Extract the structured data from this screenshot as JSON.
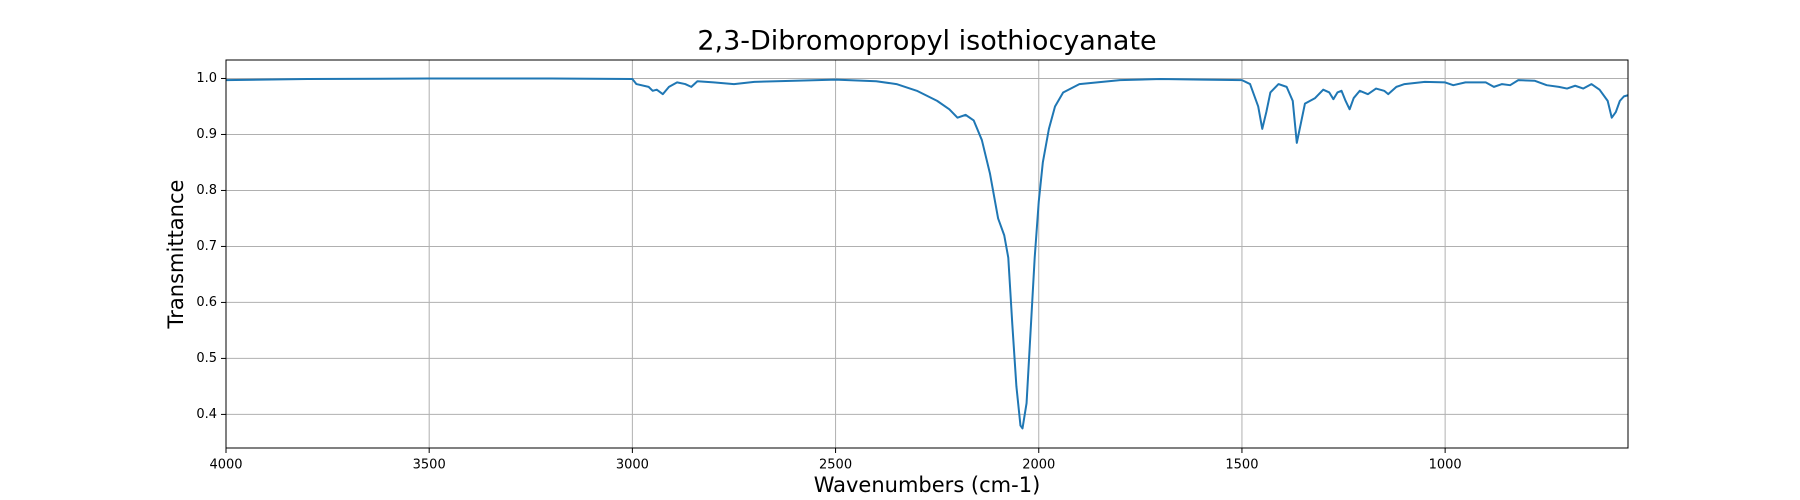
{
  "chart_data": {
    "type": "line",
    "title": "2,3-Dibromopropyl isothiocyanate",
    "x_label": "Wavenumbers (cm-1)",
    "y_label": "Transmittance",
    "color": "#1f77b4",
    "grid": true,
    "xlim": [
      4000,
      550
    ],
    "ylim": [
      0.34,
      1.033
    ],
    "xticks": [
      4000,
      3500,
      3000,
      2500,
      2000,
      1500,
      1000
    ],
    "yticks": [
      0.4,
      0.5,
      0.6,
      0.7,
      0.8,
      0.9,
      {
        "value": 1,
        "label": "1.0"
      }
    ],
    "x": [
      4000,
      3800,
      3500,
      3200,
      3000,
      2990,
      2960,
      2950,
      2940,
      2925,
      2910,
      2890,
      2870,
      2855,
      2840,
      2800,
      2750,
      2700,
      2600,
      2500,
      2400,
      2350,
      2300,
      2250,
      2220,
      2200,
      2180,
      2160,
      2140,
      2120,
      2100,
      2085,
      2075,
      2065,
      2055,
      2045,
      2040,
      2030,
      2020,
      2010,
      2000,
      1990,
      1975,
      1960,
      1940,
      1900,
      1800,
      1700,
      1600,
      1500,
      1480,
      1460,
      1450,
      1440,
      1430,
      1410,
      1390,
      1375,
      1365,
      1355,
      1345,
      1320,
      1300,
      1285,
      1275,
      1265,
      1255,
      1245,
      1235,
      1225,
      1210,
      1190,
      1170,
      1150,
      1140,
      1120,
      1100,
      1050,
      1000,
      980,
      950,
      900,
      880,
      860,
      840,
      820,
      780,
      750,
      720,
      700,
      680,
      660,
      640,
      620,
      600,
      590,
      580,
      570,
      560,
      550
    ],
    "values": [
      0.997,
      0.999,
      1.0,
      1.0,
      0.999,
      0.99,
      0.985,
      0.978,
      0.98,
      0.972,
      0.985,
      0.993,
      0.99,
      0.985,
      0.995,
      0.993,
      0.99,
      0.994,
      0.996,
      0.998,
      0.995,
      0.99,
      0.978,
      0.96,
      0.945,
      0.93,
      0.935,
      0.925,
      0.89,
      0.83,
      0.75,
      0.72,
      0.68,
      0.56,
      0.45,
      0.38,
      0.375,
      0.42,
      0.55,
      0.68,
      0.78,
      0.85,
      0.91,
      0.95,
      0.975,
      0.99,
      0.997,
      0.999,
      0.998,
      0.997,
      0.99,
      0.95,
      0.91,
      0.94,
      0.975,
      0.99,
      0.985,
      0.96,
      0.885,
      0.92,
      0.955,
      0.965,
      0.98,
      0.975,
      0.963,
      0.975,
      0.978,
      0.96,
      0.945,
      0.965,
      0.978,
      0.972,
      0.982,
      0.978,
      0.972,
      0.985,
      0.99,
      0.994,
      0.993,
      0.988,
      0.993,
      0.993,
      0.985,
      0.99,
      0.988,
      0.997,
      0.996,
      0.988,
      0.985,
      0.982,
      0.987,
      0.982,
      0.99,
      0.98,
      0.96,
      0.93,
      0.94,
      0.96,
      0.968,
      0.97
    ]
  }
}
